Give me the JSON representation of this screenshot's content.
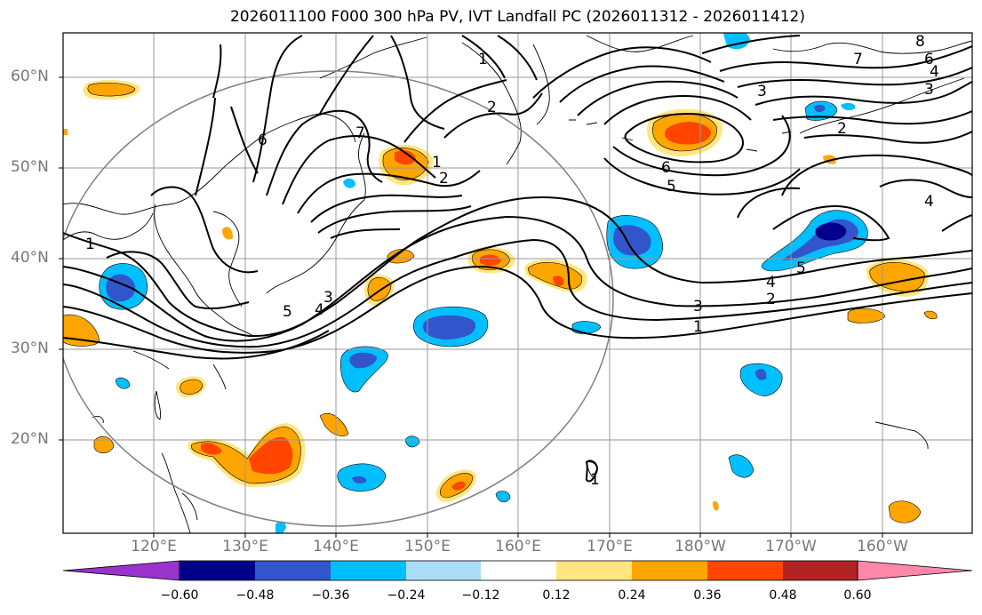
{
  "title": "2026011100 F000 300 hPa PV, IVT Landfall PC (2026011312 - 2026011412)",
  "lat_labels": [
    "60°N",
    "50°N",
    "40°N",
    "30°N",
    "20°N"
  ],
  "lon_labels": [
    "120°E",
    "130°E",
    "140°E",
    "150°E",
    "160°E",
    "170°E",
    "180°W",
    "170°W",
    "160°W"
  ],
  "colorbar": {
    "ticks": [
      "−0.60",
      "−0.48",
      "−0.36",
      "−0.24",
      "−0.12",
      "0.12",
      "0.24",
      "0.36",
      "0.48",
      "0.60"
    ],
    "colors": [
      "#9933cc",
      "#00008b",
      "#3355cc",
      "#00bfff",
      "#aadcf5",
      "#ffffff",
      "#ffe680",
      "#ffa500",
      "#ff4500",
      "#b22222",
      "#ff88aa"
    ]
  },
  "contour_labels": [
    "1",
    "2",
    "3",
    "4",
    "5",
    "6",
    "7",
    "8",
    "1",
    "2",
    "3",
    "4",
    "5",
    "6",
    "1",
    "2",
    "3",
    "4",
    "5",
    "1",
    "1",
    "2",
    "3",
    "4",
    "6",
    "7"
  ],
  "colors": {
    "contour": "#000000",
    "grid": "#999999",
    "circle": "#808080"
  }
}
